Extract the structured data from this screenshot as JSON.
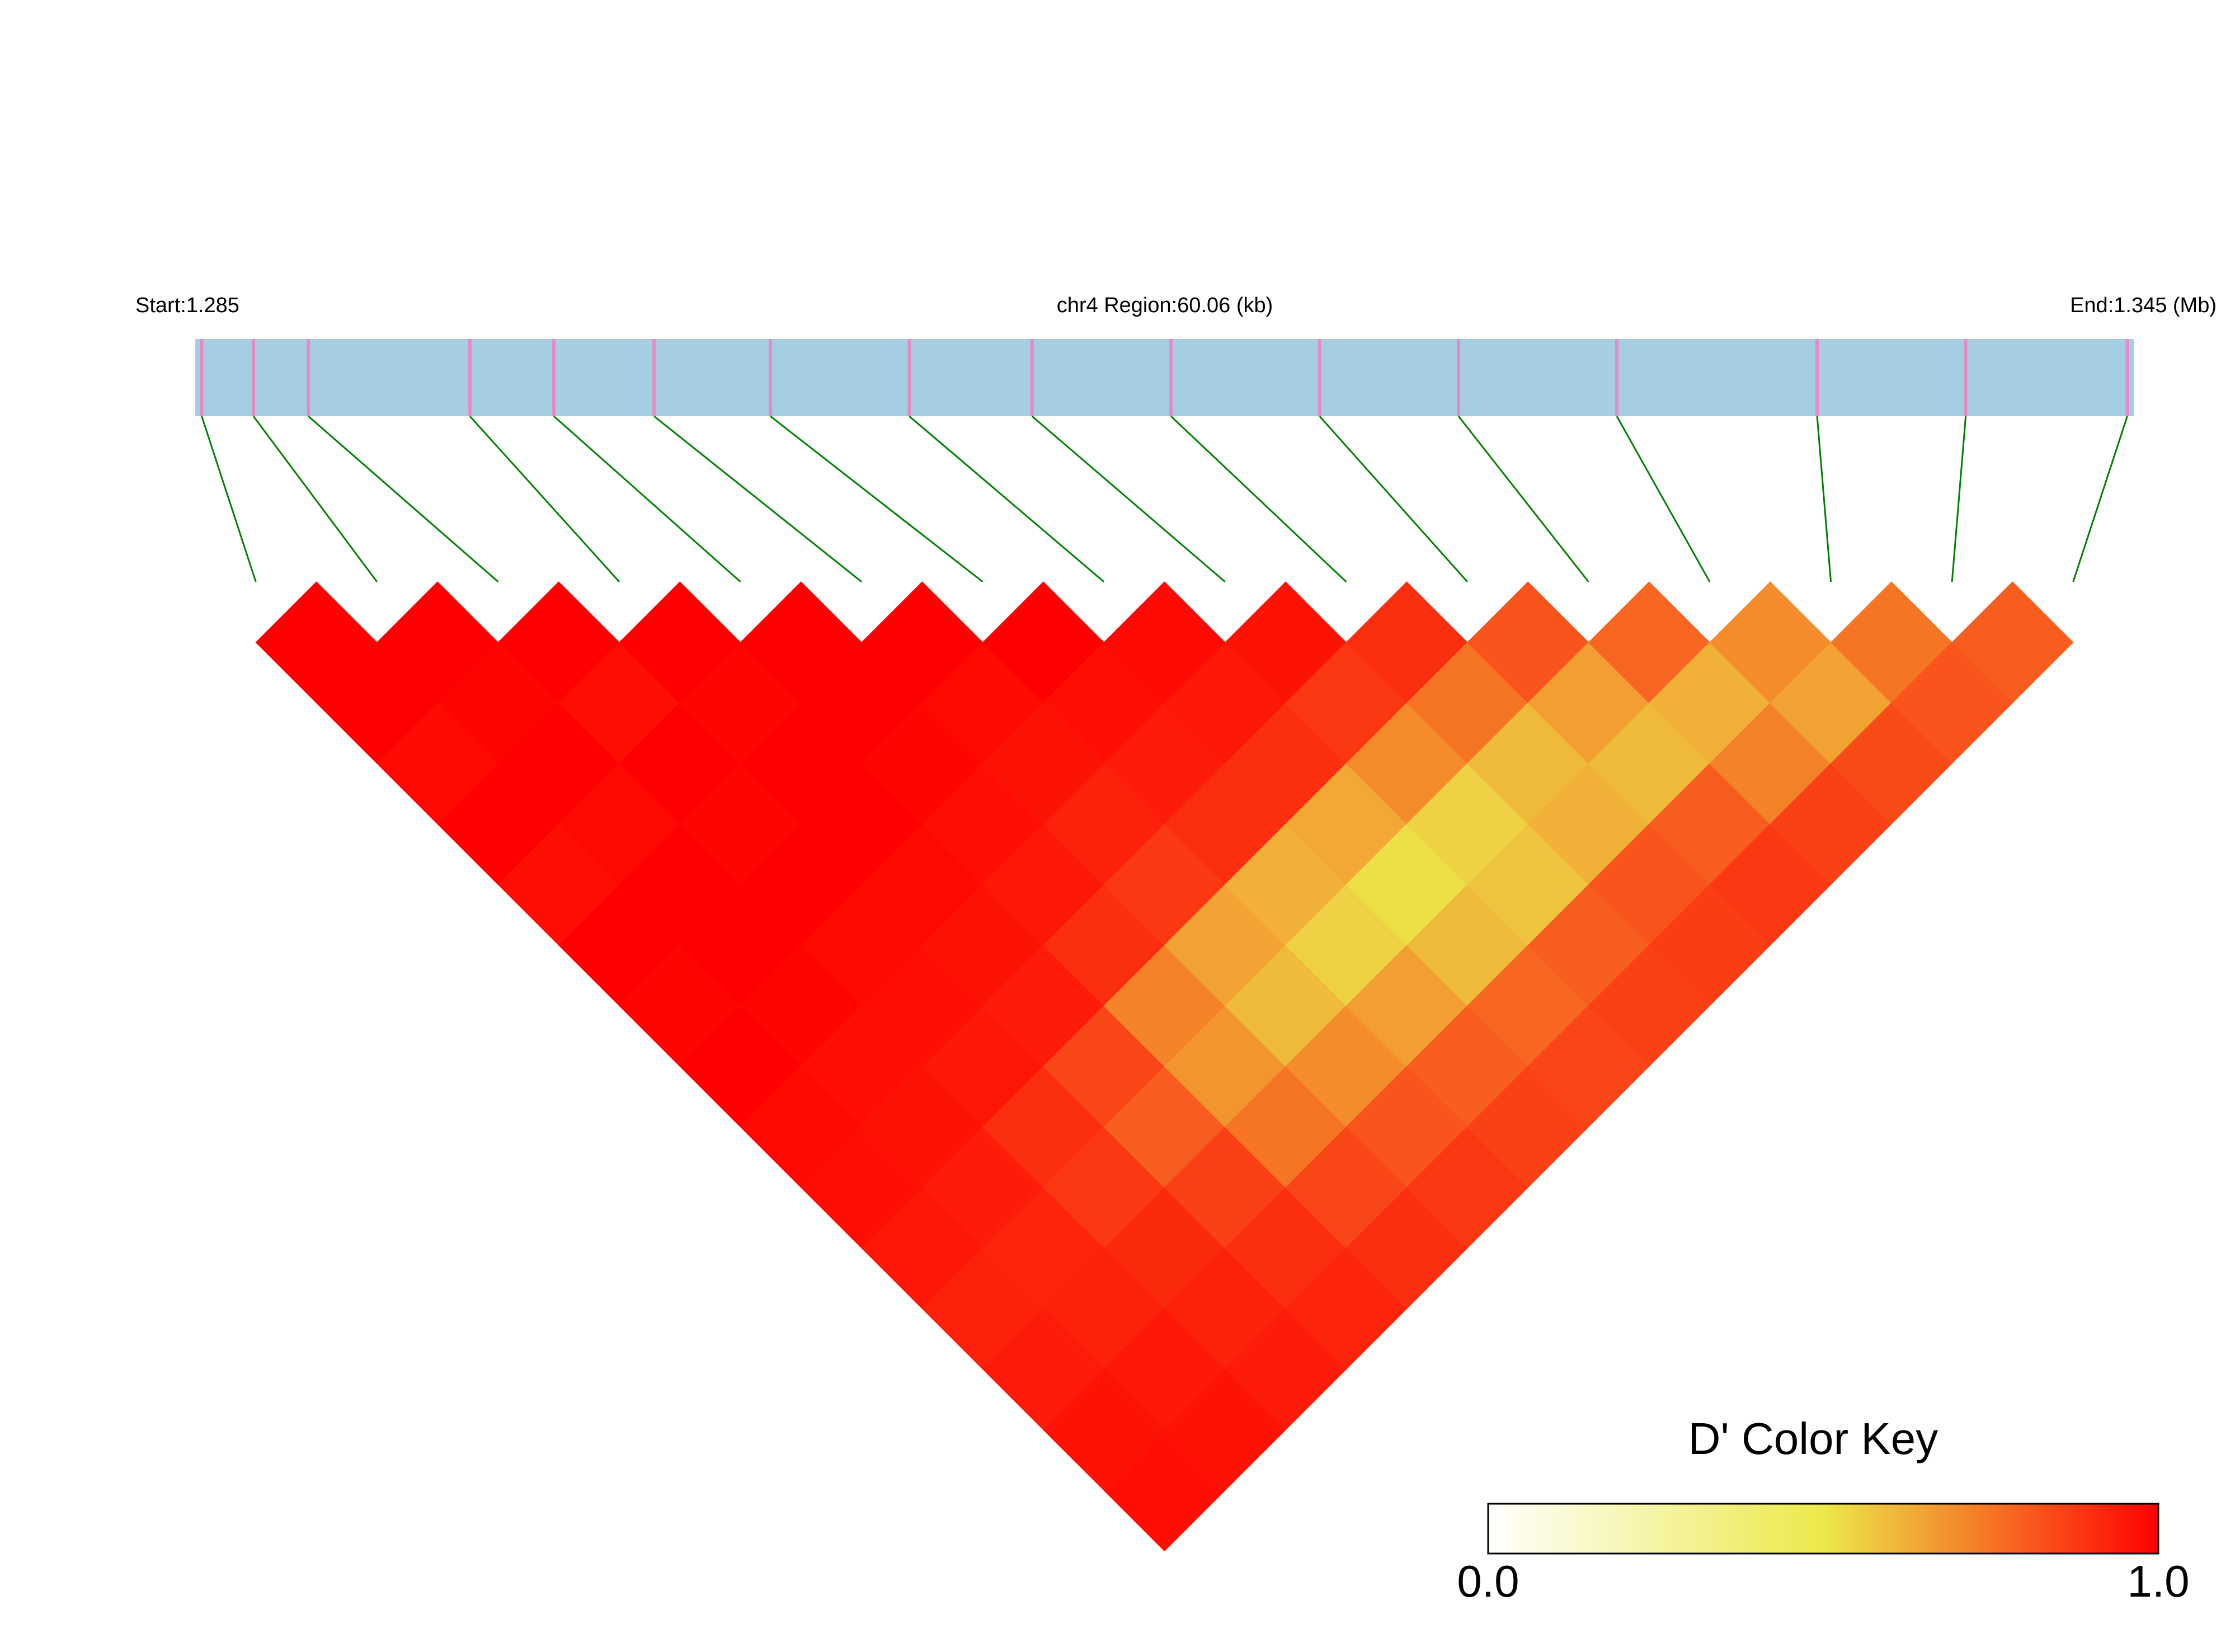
{
  "chart_data": {
    "type": "ld_heatmap",
    "start_label": "Start:1.285",
    "title": "chr4 Region:60.06 (kb)",
    "end_label": "End:1.345 (Mb)",
    "xlim": [
      1.285,
      1.345
    ],
    "snp_positions": [
      1.2852,
      1.2868,
      1.2885,
      1.2935,
      1.2961,
      1.2992,
      1.3028,
      1.3071,
      1.3109,
      1.3152,
      1.3198,
      1.3241,
      1.329,
      1.3352,
      1.3398,
      1.3448
    ],
    "matrix": [
      [
        1,
        1,
        0.98,
        1,
        0.97,
        1,
        0.99,
        1,
        0.98,
        0.97,
        0.95,
        0.93,
        0.94,
        0.96,
        0.97
      ],
      [
        1,
        0.99,
        1,
        0.98,
        1,
        1,
        0.99,
        0.97,
        0.96,
        0.94,
        0.92,
        0.93,
        0.95,
        0.96
      ],
      [
        1,
        0.97,
        1,
        0.99,
        1,
        0.98,
        0.97,
        0.95,
        0.9,
        0.88,
        0.91,
        0.93,
        0.94
      ],
      [
        1,
        0.99,
        1,
        1,
        0.98,
        0.96,
        0.94,
        0.85,
        0.8,
        0.86,
        0.9,
        0.92
      ],
      [
        1,
        1,
        0.99,
        0.97,
        0.95,
        0.9,
        0.72,
        0.68,
        0.75,
        0.85,
        0.9
      ],
      [
        1,
        0.98,
        0.96,
        0.93,
        0.88,
        0.65,
        0.6,
        0.7,
        0.82,
        0.88
      ],
      [
        1,
        0.97,
        0.94,
        0.9,
        0.62,
        0.55,
        0.66,
        0.8,
        0.86
      ],
      [
        0.98,
        0.95,
        0.9,
        0.64,
        0.52,
        0.6,
        0.78,
        0.85
      ],
      [
        0.96,
        0.88,
        0.7,
        0.55,
        0.58,
        0.8,
        0.86
      ],
      [
        0.9,
        0.75,
        0.6,
        0.62,
        0.82,
        0.87
      ],
      [
        0.82,
        0.66,
        0.6,
        0.8,
        0.88
      ],
      [
        0.78,
        0.62,
        0.72,
        0.86
      ],
      [
        0.7,
        0.65,
        0.84
      ],
      [
        0.75,
        0.82
      ],
      [
        0.8
      ]
    ],
    "bar_color": "#a6cee3",
    "snp_color": "#e78ac3",
    "link_color": "#008000",
    "colorkey": {
      "title": "D' Color Key",
      "lim": [
        0,
        1
      ],
      "ticks": [
        {
          "value": 0,
          "label": "0.0"
        },
        {
          "value": 1,
          "label": "1.0"
        }
      ],
      "colors": [
        "#ffffff",
        "#ece94a",
        "#ff0000"
      ]
    }
  }
}
